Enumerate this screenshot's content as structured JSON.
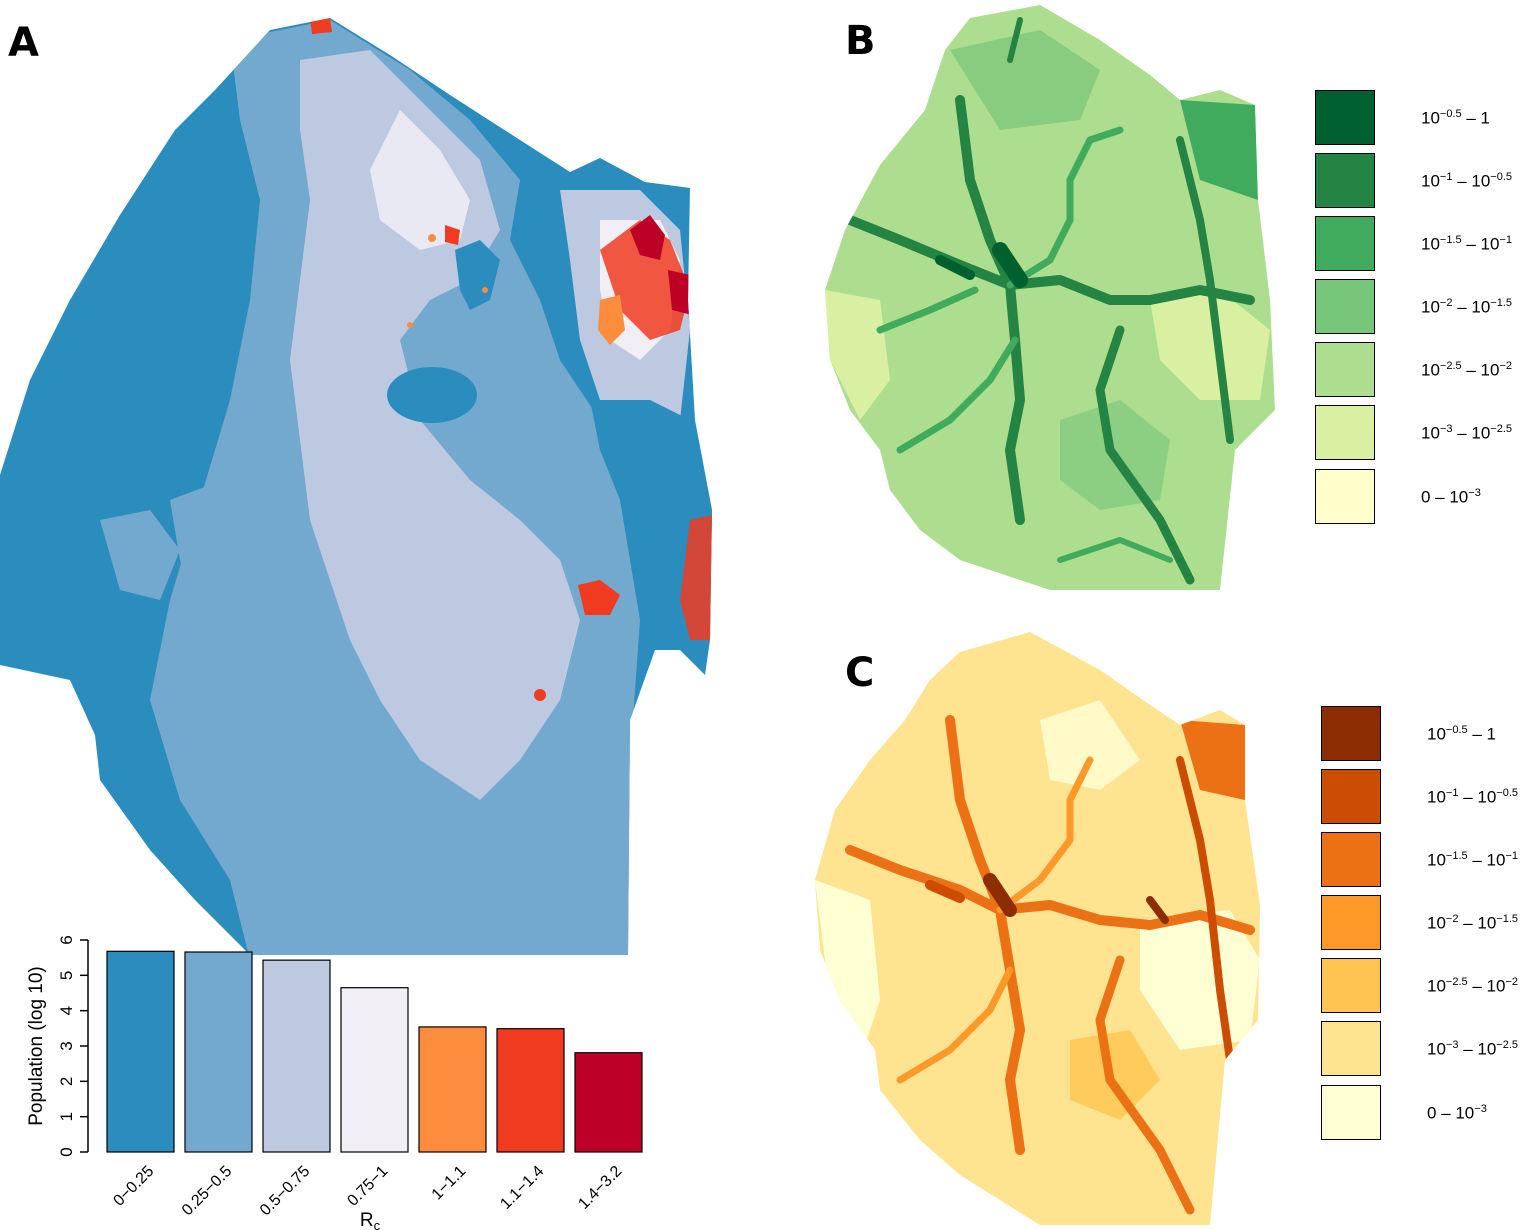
{
  "panels": {
    "a": {
      "label": "A"
    },
    "b": {
      "label": "B"
    },
    "c": {
      "label": "C"
    }
  },
  "colors": {
    "rc_classes": [
      "#2b8cbe",
      "#74a9cf",
      "#bdc9e1",
      "#f1eef6",
      "#fd8d3c",
      "#f03b20",
      "#bd0026"
    ],
    "green_scale": [
      "#00602f",
      "#238443",
      "#41ab5d",
      "#78c679",
      "#addd8e",
      "#d9f0a3",
      "#ffffcc"
    ],
    "orange_scale": [
      "#8c2d04",
      "#cc4c02",
      "#ec7014",
      "#fe9929",
      "#fec44f",
      "#fee391",
      "#ffffd4"
    ]
  },
  "legend_b": {
    "items": [
      {
        "base": "10",
        "exp1": "−0.5",
        "mid": " – 1",
        "exp2": ""
      },
      {
        "base": "10",
        "exp1": "−1",
        "mid": " – 10",
        "exp2": "−0.5"
      },
      {
        "base": "10",
        "exp1": "−1.5",
        "mid": " – 10",
        "exp2": "−1"
      },
      {
        "base": "10",
        "exp1": "−2",
        "mid": " – 10",
        "exp2": "−1.5"
      },
      {
        "base": "10",
        "exp1": "−2.5",
        "mid": " – 10",
        "exp2": "−2"
      },
      {
        "base": "10",
        "exp1": "−3",
        "mid": " – 10",
        "exp2": "−2.5"
      },
      {
        "base": "0 – 10",
        "exp1": "−3",
        "mid": "",
        "exp2": ""
      }
    ]
  },
  "legend_c": {
    "items": [
      {
        "base": "10",
        "exp1": "−0.5",
        "mid": " – 1",
        "exp2": ""
      },
      {
        "base": "10",
        "exp1": "−1",
        "mid": " – 10",
        "exp2": "−0.5"
      },
      {
        "base": "10",
        "exp1": "−1.5",
        "mid": " – 10",
        "exp2": "−1"
      },
      {
        "base": "10",
        "exp1": "−2",
        "mid": " – 10",
        "exp2": "−1.5"
      },
      {
        "base": "10",
        "exp1": "−2.5",
        "mid": " – 10",
        "exp2": "−2"
      },
      {
        "base": "10",
        "exp1": "−3",
        "mid": " – 10",
        "exp2": "−2.5"
      },
      {
        "base": "0 – 10",
        "exp1": "−3",
        "mid": "",
        "exp2": ""
      }
    ]
  },
  "chart_data": {
    "type": "bar",
    "categories": [
      "0−0.25",
      "0.25−0.5",
      "0.5−0.75",
      "0.75−1",
      "1−1.1",
      "1.1−1.4",
      "1.4−3.2"
    ],
    "values": [
      5.68,
      5.66,
      5.43,
      4.65,
      3.54,
      3.49,
      2.81
    ],
    "ylabel": "Population (log 10)",
    "xlabel_main": "R",
    "xlabel_sub": "c",
    "ylim": [
      0,
      6
    ],
    "yticks": [
      0,
      1,
      2,
      3,
      4,
      5,
      6
    ]
  }
}
